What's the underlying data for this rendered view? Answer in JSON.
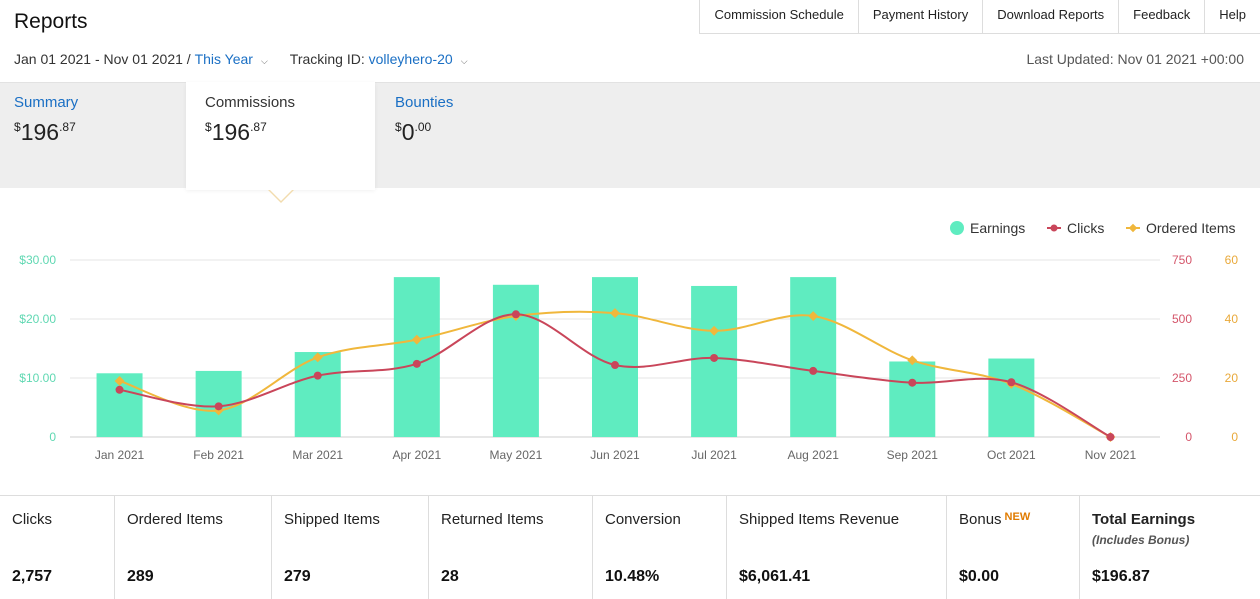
{
  "header": {
    "title": "Reports",
    "nav": [
      "Commission Schedule",
      "Payment History",
      "Download Reports",
      "Feedback",
      "Help"
    ]
  },
  "filters": {
    "date_range": "Jan 01 2021 - Nov 01 2021 /",
    "period": "This Year",
    "tracking_label": "Tracking ID:",
    "tracking_id": "volleyhero-20",
    "last_updated": "Last Updated: Nov 01 2021 +00:00"
  },
  "tabs": [
    {
      "label": "Summary",
      "currency": "$",
      "whole": "196",
      "cents": ".87",
      "active": false
    },
    {
      "label": "Commissions",
      "currency": "$",
      "whole": "196",
      "cents": ".87",
      "active": true
    },
    {
      "label": "Bounties",
      "currency": "$",
      "whole": "0",
      "cents": ".00",
      "active": false
    }
  ],
  "chart_data": {
    "type": "bar",
    "categories": [
      "Jan 2021",
      "Feb 2021",
      "Mar 2021",
      "Apr 2021",
      "May 2021",
      "Jun 2021",
      "Jul 2021",
      "Aug 2021",
      "Sep 2021",
      "Oct 2021",
      "Nov 2021"
    ],
    "series": [
      {
        "name": "Earnings",
        "type": "bar",
        "axis": "left",
        "color": "#5fecc0",
        "values": [
          10.8,
          11.2,
          14.4,
          27.1,
          25.8,
          27.1,
          25.6,
          27.1,
          12.8,
          13.3,
          0
        ]
      },
      {
        "name": "Clicks",
        "type": "line",
        "axis": "right-clicks",
        "color": "#c9465a",
        "values": [
          200,
          130,
          260,
          310,
          520,
          305,
          335,
          280,
          230,
          232,
          0
        ]
      },
      {
        "name": "Ordered Items",
        "type": "line",
        "axis": "right-items",
        "color": "#f0b73c",
        "values": [
          19,
          9,
          27,
          33,
          41,
          42,
          36,
          41,
          26,
          18,
          0
        ]
      }
    ],
    "y_left": {
      "ticks": [
        "0",
        "$10.00",
        "$20.00",
        "$30.00"
      ],
      "range": [
        0,
        30
      ],
      "color": "#5fd8b2"
    },
    "y_right_clicks": {
      "ticks": [
        "0",
        "250",
        "500",
        "750"
      ],
      "range": [
        0,
        750
      ],
      "color": "#d4556a"
    },
    "y_right_items": {
      "ticks": [
        "0",
        "20",
        "40",
        "60"
      ],
      "range": [
        0,
        60
      ],
      "color": "#e9a93a"
    },
    "legend": [
      "Earnings",
      "Clicks",
      "Ordered Items"
    ],
    "legend_position": "top-right",
    "grid": true
  },
  "stats": [
    {
      "label": "Clicks",
      "value": "2,757"
    },
    {
      "label": "Ordered Items",
      "value": "289"
    },
    {
      "label": "Shipped Items",
      "value": "279"
    },
    {
      "label": "Returned Items",
      "value": "28"
    },
    {
      "label": "Conversion",
      "value": "10.48%"
    },
    {
      "label": "Shipped Items Revenue",
      "value": "$6,061.41"
    },
    {
      "label": "Bonus",
      "badge": "NEW",
      "value": "$0.00"
    },
    {
      "label": "Total Earnings",
      "sub": "(Includes Bonus)",
      "value": "$196.87"
    }
  ]
}
